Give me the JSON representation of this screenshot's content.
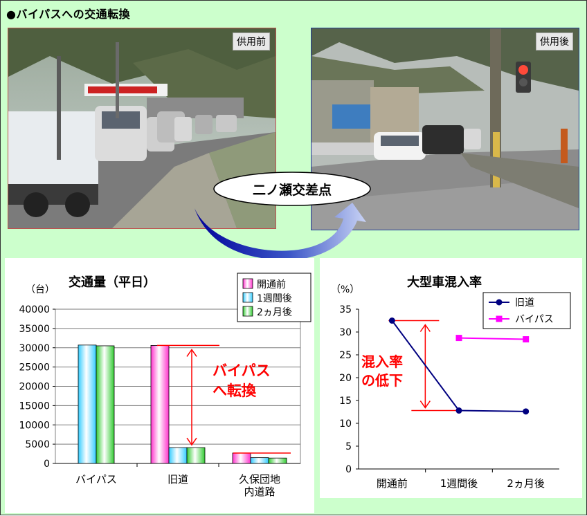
{
  "page_title": "●バイパスへの交通転換",
  "photos": {
    "before_label": "供用前",
    "after_label": "供用後",
    "intersection_label": "二ノ瀬交差点"
  },
  "chart_data": [
    {
      "type": "bar",
      "title": "交通量（平日）",
      "ylabel": "（台）",
      "ylim": [
        0,
        40000
      ],
      "yticks": [
        0,
        5000,
        10000,
        15000,
        20000,
        25000,
        30000,
        35000,
        40000
      ],
      "categories": [
        "バイパス",
        "旧道",
        "久保団地\n内道路"
      ],
      "series": [
        {
          "name": "開通前",
          "values": [
            null,
            30600,
            2700
          ],
          "color": "#ff33cc"
        },
        {
          "name": "1週間後",
          "values": [
            30700,
            4100,
            1500
          ],
          "color": "#33ccff"
        },
        {
          "name": "2ヵ月後",
          "values": [
            30500,
            4100,
            1400
          ],
          "color": "#33cc33"
        }
      ],
      "legend": "top-right",
      "grid": true,
      "annotation": "バイパス\nへ転換"
    },
    {
      "type": "line",
      "title": "大型車混入率",
      "ylabel": "（%）",
      "ylim": [
        0,
        35
      ],
      "yticks": [
        0,
        5,
        10,
        15,
        20,
        25,
        30,
        35
      ],
      "categories": [
        "開通前",
        "1週間後",
        "2ヵ月後"
      ],
      "series": [
        {
          "name": "旧道",
          "values": [
            32.5,
            12.8,
            12.6
          ],
          "color": "#000080",
          "marker": "circle"
        },
        {
          "name": "バイパス",
          "values": [
            null,
            28.7,
            28.4
          ],
          "color": "#ff00ff",
          "marker": "square"
        }
      ],
      "legend": "top-right",
      "grid": false,
      "annotation": "混入率\nの低下"
    }
  ]
}
